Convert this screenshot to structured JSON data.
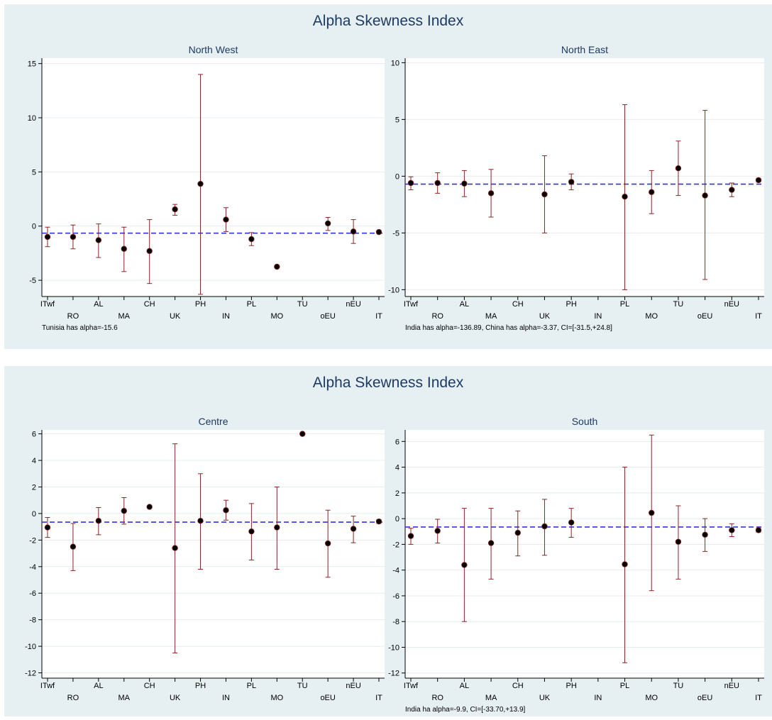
{
  "panels": [
    {
      "title": "Alpha Skewness Index",
      "charts": [
        {
          "title": "North West",
          "note": "Tunisia has alpha=-15.6",
          "ylim": [
            -6.5,
            15.5
          ],
          "yticks": [
            -5,
            0,
            5,
            10,
            15
          ],
          "reference": -0.65
        },
        {
          "title": "North East",
          "note": "India has alpha=-136.89, China has alpha=-3.37, CI=[-31.5,+24.8]",
          "ylim": [
            -10.6,
            10.4
          ],
          "yticks": [
            -10,
            -5,
            0,
            5,
            10
          ],
          "reference": -0.7
        }
      ]
    },
    {
      "title": "Alpha Skewness Index",
      "charts": [
        {
          "title": "Centre",
          "note": "",
          "ylim": [
            -12.4,
            6.3
          ],
          "yticks": [
            -12,
            -10,
            -8,
            -6,
            -4,
            -2,
            0,
            2,
            4,
            6
          ],
          "reference": -0.65
        },
        {
          "title": "South",
          "note": "India ha alpha=-9.9, CI=[-33.70,+13.9]",
          "ylim": [
            -12.4,
            6.9
          ],
          "yticks": [
            -12,
            -10,
            -8,
            -6,
            -4,
            -2,
            0,
            2,
            4,
            6
          ],
          "reference": -0.65
        }
      ]
    }
  ],
  "chart_data": [
    {
      "type": "scatter",
      "title": "North West",
      "categories": [
        "ITwf",
        "RO",
        "AL",
        "MA",
        "CH",
        "UK",
        "PH",
        "IN",
        "PL",
        "MO",
        "TU",
        "oEU",
        "nEU",
        "IT"
      ],
      "points": [
        -1.0,
        -1.0,
        -1.3,
        -2.1,
        -2.3,
        1.55,
        3.9,
        0.6,
        -1.2,
        -3.75,
        null,
        0.25,
        -0.5,
        -0.55
      ],
      "ci_low": [
        -1.9,
        -2.1,
        -2.9,
        -4.2,
        -5.3,
        1.0,
        -6.3,
        -0.5,
        -1.8,
        null,
        null,
        -0.4,
        -1.6,
        -0.7
      ],
      "ci_high": [
        -0.1,
        0.1,
        0.2,
        -0.1,
        0.6,
        2.0,
        14.0,
        1.7,
        -0.6,
        null,
        null,
        0.8,
        0.6,
        -0.4
      ],
      "ylim": [
        -6.5,
        15.5
      ],
      "reference_line": -0.65,
      "color": "#8b2323",
      "reference_color": "#3333dd"
    },
    {
      "type": "scatter",
      "title": "North East",
      "categories": [
        "ITwf",
        "RO",
        "AL",
        "MA",
        "CH",
        "UK",
        "PH",
        "IN",
        "PL",
        "MO",
        "TU",
        "oEU",
        "nEU",
        "IT"
      ],
      "points": [
        -0.6,
        -0.6,
        -0.65,
        -1.5,
        null,
        -1.6,
        -0.5,
        null,
        -1.8,
        -1.4,
        0.7,
        -1.7,
        -1.2,
        -0.35
      ],
      "ci_low": [
        -1.2,
        -1.5,
        -1.8,
        -3.6,
        null,
        -5.0,
        -1.2,
        null,
        -10.0,
        -3.3,
        -1.7,
        -9.1,
        -1.8,
        -0.5
      ],
      "ci_high": [
        -0.05,
        0.3,
        0.5,
        0.6,
        null,
        1.8,
        0.2,
        null,
        6.3,
        0.5,
        3.1,
        5.8,
        -0.6,
        -0.2
      ],
      "ylim": [
        -10.6,
        10.4
      ],
      "reference_line": -0.7,
      "color": "#8b2323",
      "reference_color": "#3333dd"
    },
    {
      "type": "scatter",
      "title": "Centre",
      "categories": [
        "ITwf",
        "RO",
        "AL",
        "MA",
        "CH",
        "UK",
        "PH",
        "IN",
        "PL",
        "MO",
        "TU",
        "oEU",
        "nEU",
        "IT"
      ],
      "points": [
        -1.05,
        -2.5,
        -0.55,
        0.2,
        0.5,
        -2.6,
        -0.55,
        0.25,
        -1.35,
        -1.05,
        6.0,
        -2.25,
        -1.15,
        -0.6
      ],
      "ci_low": [
        -1.8,
        -4.3,
        -1.6,
        -0.8,
        null,
        -10.5,
        -4.2,
        -0.5,
        -3.5,
        -4.2,
        null,
        -4.8,
        -2.2,
        -0.75
      ],
      "ci_high": [
        -0.3,
        -0.75,
        0.45,
        1.2,
        null,
        5.25,
        3.0,
        1.0,
        0.75,
        2.0,
        null,
        0.25,
        -0.2,
        -0.45
      ],
      "ylim": [
        -12.4,
        6.3
      ],
      "reference_line": -0.65,
      "color": "#8b2323",
      "reference_color": "#3333dd"
    },
    {
      "type": "scatter",
      "title": "South",
      "categories": [
        "ITwf",
        "RO",
        "AL",
        "MA",
        "CH",
        "UK",
        "PH",
        "IN",
        "PL",
        "MO",
        "TU",
        "oEU",
        "nEU",
        "IT"
      ],
      "points": [
        -1.35,
        -0.95,
        -3.6,
        -1.9,
        -1.1,
        -0.6,
        -0.3,
        null,
        -3.55,
        0.45,
        -1.8,
        -1.25,
        -0.9,
        -0.9
      ],
      "ci_low": [
        -2.0,
        -1.9,
        -8.0,
        -4.7,
        -2.9,
        -2.85,
        -1.45,
        null,
        -11.2,
        -5.6,
        -4.7,
        -2.55,
        -1.4,
        -1.05
      ],
      "ci_high": [
        -0.75,
        -0.05,
        0.8,
        0.8,
        0.6,
        1.5,
        0.8,
        null,
        4.0,
        6.5,
        1.0,
        0.0,
        -0.4,
        -0.75
      ],
      "ylim": [
        -12.4,
        6.9
      ],
      "reference_line": -0.65,
      "color": "#8b2323",
      "reference_color": "#3333dd"
    }
  ]
}
